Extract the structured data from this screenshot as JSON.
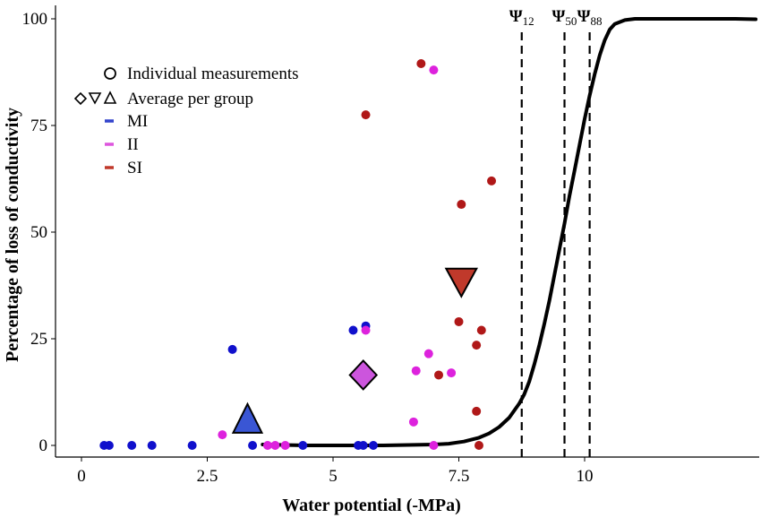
{
  "chart_data": {
    "type": "scatter",
    "xlabel": "Water potential (-MPa)",
    "ylabel": "Percentage of loss of conductivity",
    "xlim": [
      -0.5,
      13.5
    ],
    "ylim": [
      -3,
      101
    ],
    "x_ticks": [
      {
        "value": 0,
        "label": "0"
      },
      {
        "value": 2.5,
        "label": "2.5"
      },
      {
        "value": 5,
        "label": "5"
      },
      {
        "value": 7.5,
        "label": "7.5"
      },
      {
        "value": 10,
        "label": "10"
      }
    ],
    "y_ticks": [
      {
        "value": 0,
        "label": "0"
      },
      {
        "value": 25,
        "label": "25"
      },
      {
        "value": 50,
        "label": "50"
      },
      {
        "value": 75,
        "label": "75"
      },
      {
        "value": 100,
        "label": "100"
      }
    ],
    "grid": false,
    "legend": {
      "position": "top-left",
      "items": [
        {
          "symbol": "circle",
          "label": "Individual measurements"
        },
        {
          "symbol": "diamond-triangles",
          "label": "Average per group"
        },
        {
          "symbol": "dash",
          "color": "#3344cc",
          "label": "MI"
        },
        {
          "symbol": "dash",
          "color": "#dd55dd",
          "label": "II"
        },
        {
          "symbol": "dash",
          "color": "#c0392b",
          "label": "SI"
        }
      ]
    },
    "vulnerability_curve": {
      "color": "#000000",
      "x": [
        3.6,
        4.0,
        4.5,
        5.0,
        5.5,
        6.0,
        6.5,
        7.0,
        7.3,
        7.6,
        7.9,
        8.1,
        8.3,
        8.5,
        8.7,
        8.8,
        8.9,
        9.0,
        9.1,
        9.2,
        9.3,
        9.4,
        9.5,
        9.6,
        9.7,
        9.8,
        9.9,
        10.0,
        10.1,
        10.2,
        10.3,
        10.4,
        10.5,
        10.6,
        10.8,
        11.0,
        11.5,
        12.0,
        12.5,
        13.0,
        13.4
      ],
      "y": [
        0.2,
        0.1,
        0.0,
        0.0,
        0.0,
        0.0,
        0.1,
        0.2,
        0.4,
        0.9,
        1.8,
        2.8,
        4.3,
        6.5,
        9.8,
        12.0,
        15.0,
        19.0,
        23.5,
        28.5,
        34.0,
        40.0,
        46.0,
        52.0,
        58.5,
        64.5,
        70.5,
        76.5,
        82.0,
        87.0,
        91.5,
        95.0,
        97.5,
        98.8,
        99.7,
        100.0,
        100.0,
        100.0,
        100.0,
        100.0,
        99.9
      ]
    },
    "thresholds": [
      {
        "symbol": "Ψ",
        "subscript": "12",
        "x": 8.75
      },
      {
        "symbol": "Ψ",
        "subscript": "50",
        "x": 9.6
      },
      {
        "symbol": "Ψ",
        "subscript": "88",
        "x": 10.1
      }
    ],
    "series": [
      {
        "name": "MI",
        "color": "#1010cc",
        "points": [
          {
            "x": 0.45,
            "y": 0
          },
          {
            "x": 0.55,
            "y": 0
          },
          {
            "x": 1.0,
            "y": 0
          },
          {
            "x": 1.4,
            "y": 0
          },
          {
            "x": 2.2,
            "y": 0
          },
          {
            "x": 3.0,
            "y": 22.5
          },
          {
            "x": 3.4,
            "y": 0
          },
          {
            "x": 5.4,
            "y": 27
          },
          {
            "x": 5.65,
            "y": 28
          },
          {
            "x": 5.5,
            "y": 0
          },
          {
            "x": 5.6,
            "y": 0
          },
          {
            "x": 5.8,
            "y": 0
          },
          {
            "x": 4.4,
            "y": 0
          }
        ],
        "average": {
          "shape": "triangle-up",
          "x": 3.3,
          "y": 5.5,
          "fill": "#3a56d4"
        }
      },
      {
        "name": "II",
        "color": "#dd22dd",
        "points": [
          {
            "x": 2.8,
            "y": 2.5
          },
          {
            "x": 3.7,
            "y": 0
          },
          {
            "x": 3.85,
            "y": 0
          },
          {
            "x": 4.05,
            "y": 0
          },
          {
            "x": 5.65,
            "y": 27
          },
          {
            "x": 6.65,
            "y": 17.5
          },
          {
            "x": 6.6,
            "y": 5.5
          },
          {
            "x": 6.9,
            "y": 21.5
          },
          {
            "x": 7.35,
            "y": 17
          },
          {
            "x": 7.0,
            "y": 88
          },
          {
            "x": 7.0,
            "y": 0
          }
        ],
        "average": {
          "shape": "diamond",
          "x": 5.6,
          "y": 16.5,
          "fill": "#cc55dd"
        }
      },
      {
        "name": "SI",
        "color": "#b01818",
        "points": [
          {
            "x": 5.65,
            "y": 77.5
          },
          {
            "x": 6.75,
            "y": 89.5
          },
          {
            "x": 7.55,
            "y": 56.5
          },
          {
            "x": 8.15,
            "y": 62
          },
          {
            "x": 7.5,
            "y": 29
          },
          {
            "x": 7.95,
            "y": 27
          },
          {
            "x": 7.85,
            "y": 23.5
          },
          {
            "x": 7.1,
            "y": 16.5
          },
          {
            "x": 7.85,
            "y": 8
          },
          {
            "x": 7.9,
            "y": 0
          }
        ],
        "average": {
          "shape": "triangle-down",
          "x": 7.55,
          "y": 38.5,
          "fill": "#c0392b"
        }
      }
    ]
  }
}
